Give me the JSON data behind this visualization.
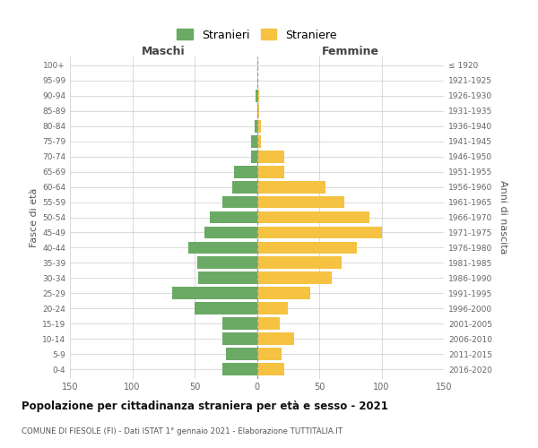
{
  "age_groups": [
    "100+",
    "95-99",
    "90-94",
    "85-89",
    "80-84",
    "75-79",
    "70-74",
    "65-69",
    "60-64",
    "55-59",
    "50-54",
    "45-49",
    "40-44",
    "35-39",
    "30-34",
    "25-29",
    "20-24",
    "15-19",
    "10-14",
    "5-9",
    "0-4"
  ],
  "birth_years": [
    "≤ 1920",
    "1921-1925",
    "1926-1930",
    "1931-1935",
    "1936-1940",
    "1941-1945",
    "1946-1950",
    "1951-1955",
    "1956-1960",
    "1961-1965",
    "1966-1970",
    "1971-1975",
    "1976-1980",
    "1981-1985",
    "1986-1990",
    "1991-1995",
    "1996-2000",
    "2001-2005",
    "2006-2010",
    "2011-2015",
    "2016-2020"
  ],
  "maschi": [
    0,
    0,
    1,
    0,
    2,
    5,
    5,
    18,
    20,
    28,
    38,
    42,
    55,
    48,
    47,
    68,
    50,
    28,
    28,
    25,
    28
  ],
  "femmine": [
    0,
    0,
    2,
    2,
    3,
    3,
    22,
    22,
    55,
    70,
    90,
    100,
    80,
    68,
    60,
    43,
    25,
    18,
    30,
    20,
    22
  ],
  "male_color": "#6aaa64",
  "female_color": "#f5c242",
  "male_label": "Stranieri",
  "female_label": "Straniere",
  "title": "Popolazione per cittadinanza straniera per età e sesso - 2021",
  "subtitle": "COMUNE DI FIESOLE (FI) - Dati ISTAT 1° gennaio 2021 - Elaborazione TUTTITALIA.IT",
  "ylabel_left": "Fasce di età",
  "ylabel_right": "Anni di nascita",
  "xlabel_left": "Maschi",
  "xlabel_right": "Femmine",
  "xlim": 150,
  "background_color": "#ffffff",
  "grid_color": "#cccccc",
  "bar_height": 0.82
}
